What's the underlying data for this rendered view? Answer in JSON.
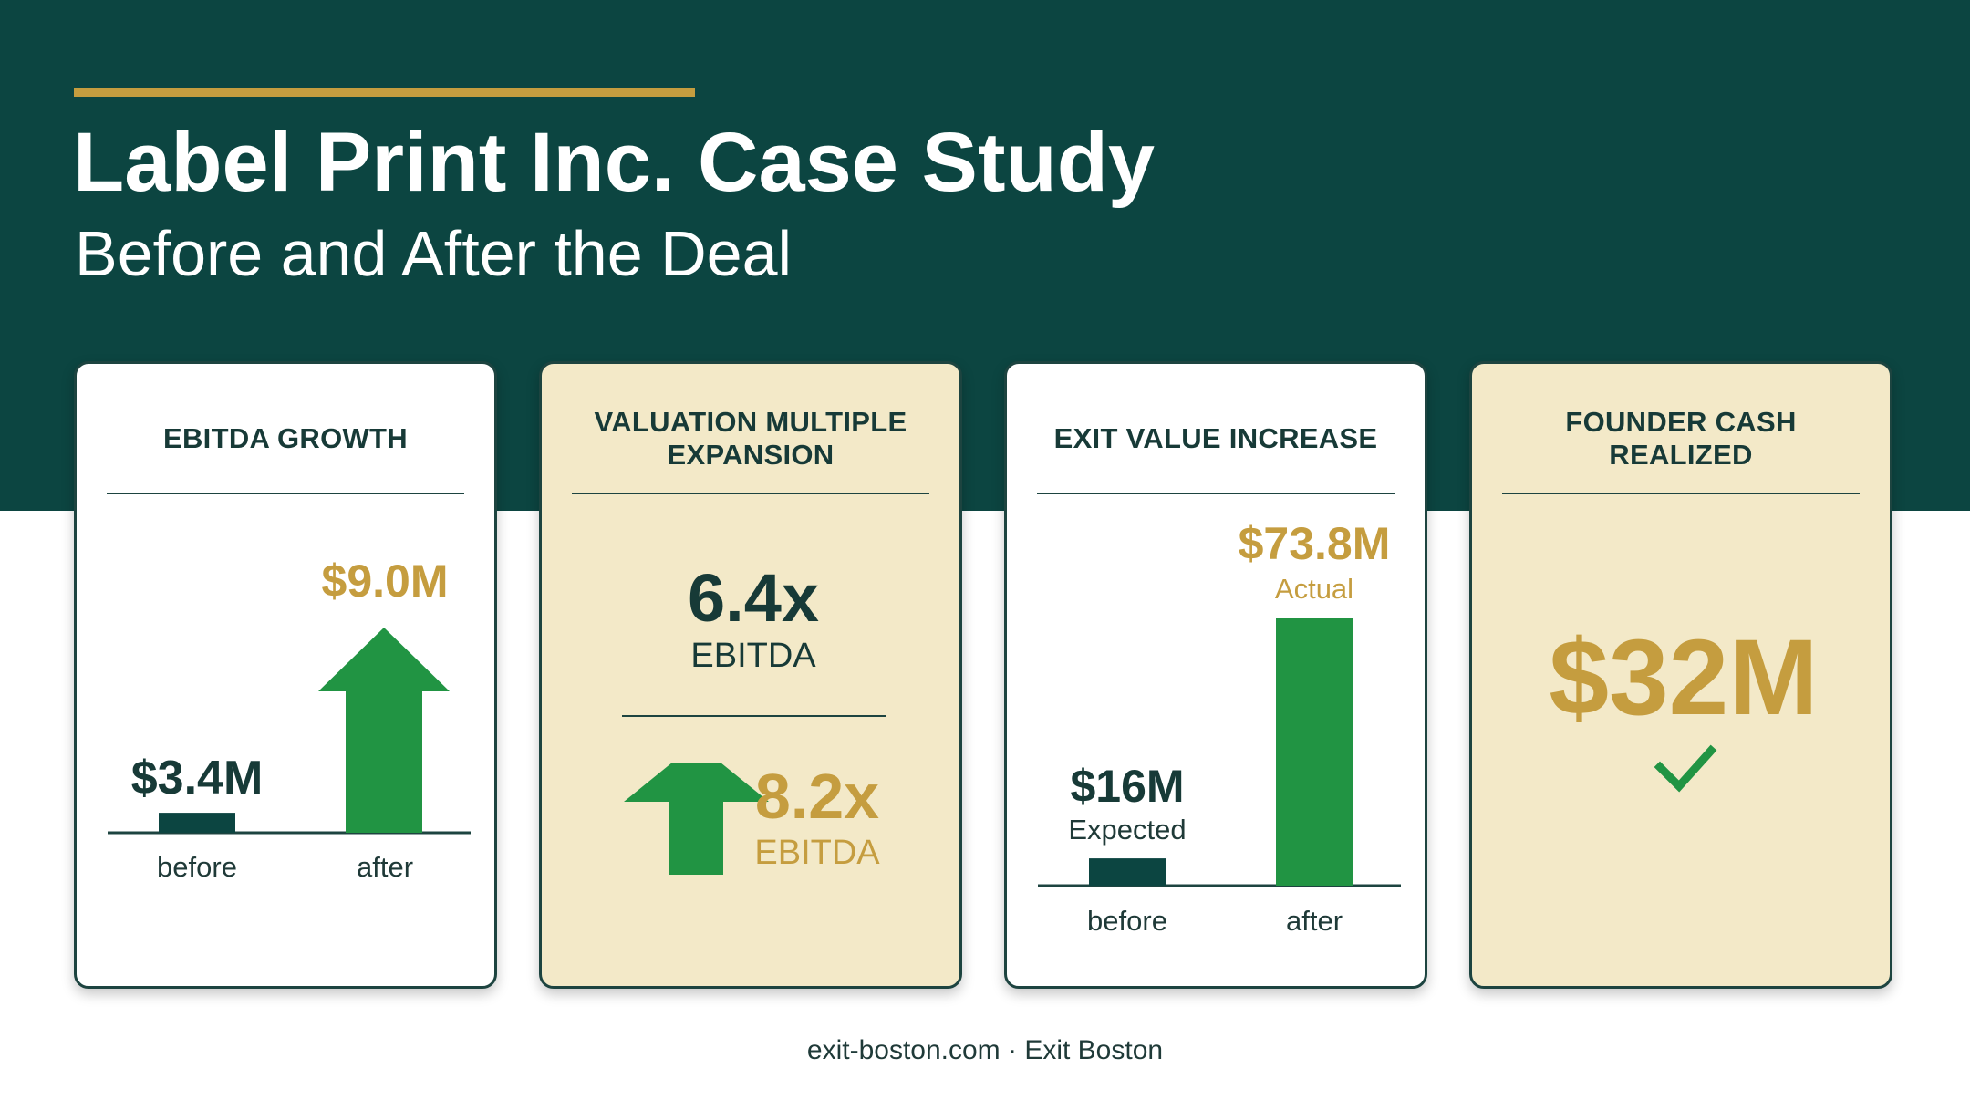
{
  "header": {
    "title": "Label Print Inc. Case Study",
    "subtitle": "Before and After the Deal"
  },
  "cards": [
    {
      "title": "EBITDA GROWTH"
    },
    {
      "title": "VALUATION MULTIPLE\nEXPANSION"
    },
    {
      "title": "EXIT VALUE INCREASE"
    },
    {
      "title": "FOUNDER CASH\nREALIZED"
    }
  ],
  "footer": {
    "text": "exit-boston.com · Exit Boston"
  },
  "colors": {
    "header_bg": "#0c4541",
    "gold": "#c59d3f",
    "green": "#219443",
    "dark_green": "#0c4541",
    "cream": "#f3e9c8"
  },
  "chart_data": [
    {
      "type": "bar",
      "title": "EBITDA GROWTH",
      "categories": [
        "before",
        "after"
      ],
      "values": [
        3.4,
        9.0
      ],
      "value_labels": [
        "$3.4M",
        "$9.0M"
      ],
      "unit": "$M",
      "ylim": [
        0,
        10
      ],
      "after_mark": "arrow-up-icon"
    },
    {
      "type": "table",
      "title": "VALUATION MULTIPLE\nEXPANSION",
      "rows": [
        {
          "value": 6.4,
          "label": "6.4x",
          "caption": "EBITDA",
          "stage": "before"
        },
        {
          "value": 8.2,
          "label": "8.2x",
          "caption": "EBITDA",
          "stage": "after",
          "icon": "arrow-up-icon"
        }
      ]
    },
    {
      "type": "bar",
      "title": "EXIT VALUE INCREASE",
      "categories": [
        "before",
        "after"
      ],
      "values": [
        16,
        73.8
      ],
      "value_labels": [
        "$16M",
        "$73.8M"
      ],
      "value_captions": [
        "Expected",
        "Actual"
      ],
      "unit": "$M",
      "ylim": [
        0,
        80
      ]
    },
    {
      "type": "table",
      "title": "FOUNDER CASH\nREALIZED",
      "value": 32,
      "label": "$32M",
      "icon": "check-icon"
    }
  ]
}
